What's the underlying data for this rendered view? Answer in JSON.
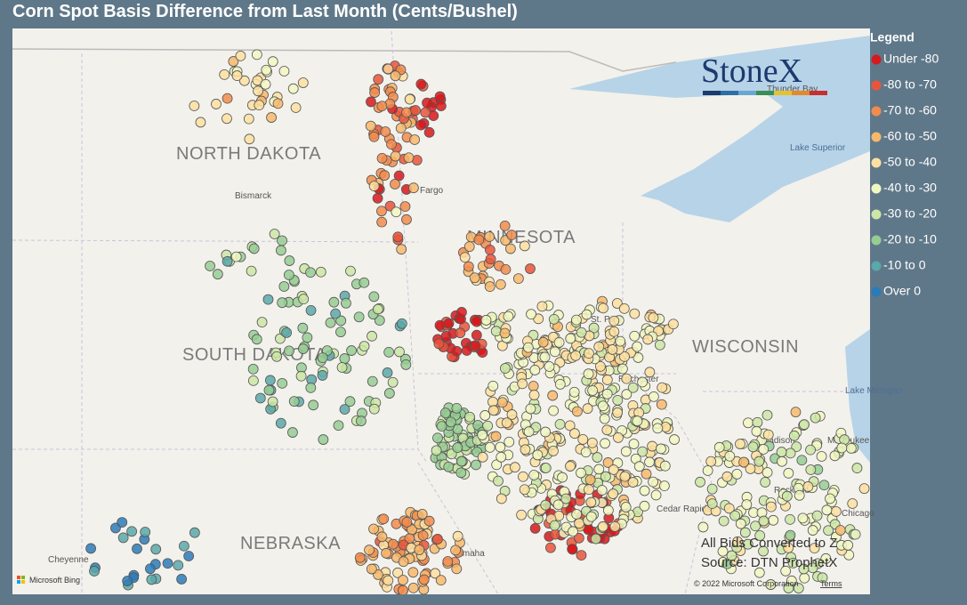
{
  "header": {
    "title": "Corn Spot Basis Difference from Last Month (Cents/Bushel)"
  },
  "legend": {
    "title": "Legend",
    "items": [
      {
        "label": "Under -80",
        "color": "#d7191c"
      },
      {
        "label": "-80 to -70",
        "color": "#e9553b"
      },
      {
        "label": "-70 to -60",
        "color": "#f28c4c"
      },
      {
        "label": "-60 to -50",
        "color": "#f7b86c"
      },
      {
        "label": "-50 to -40",
        "color": "#fde0a1"
      },
      {
        "label": "-40 to -30",
        "color": "#f1f7c2"
      },
      {
        "label": "-30 to -20",
        "color": "#cbe6a6"
      },
      {
        "label": "-20 to -10",
        "color": "#97cc94"
      },
      {
        "label": "-10 to 0",
        "color": "#5aa8a9"
      },
      {
        "label": "Over 0",
        "color": "#2c7bb9"
      }
    ]
  },
  "map": {
    "states": [
      "NORTH DAKOTA",
      "SOUTH DAKOTA",
      "MINNESOTA",
      "WISCONSIN",
      "NEBRASKA"
    ],
    "places": [
      "Bismarck",
      "Fargo",
      "St. Paul",
      "Rochester",
      "Madison",
      "Milwaukee",
      "Rockford",
      "Cedar Rapids",
      "Omaha",
      "Cheyenne",
      "Chicago",
      "Thunder Bay",
      "Lake Superior",
      "Lake Michigan"
    ],
    "logo": "StoneX",
    "notes": [
      "All Bids Converted to Z",
      "Source: DTN ProphetX"
    ],
    "attribution": "Microsoft Bing",
    "copyright": "© 2022 Microsoft Corporation",
    "terms": "Terms"
  }
}
